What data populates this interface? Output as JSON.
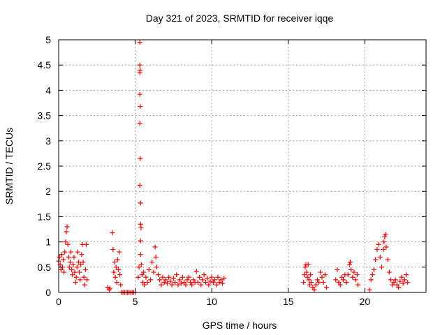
{
  "chart_data": {
    "type": "scatter",
    "title": "Day 321 of 2023, SRMTID for receiver iqqe",
    "xlabel": "GPS time / hours",
    "ylabel": "SRMTID / TECUs",
    "xlim": [
      0,
      24
    ],
    "ylim": [
      0,
      5
    ],
    "xticks": [
      0,
      5,
      10,
      15,
      20
    ],
    "yticks": [
      0,
      0.5,
      1,
      1.5,
      2,
      2.5,
      3,
      3.5,
      4,
      4.5,
      5
    ],
    "xtick_labels": [
      "0",
      "5",
      "10",
      "15",
      "20"
    ],
    "ytick_labels": [
      "0",
      "0.5",
      "1",
      "1.5",
      "2",
      "2.5",
      "3",
      "3.5",
      "4",
      "4.5",
      "5"
    ],
    "grid": true,
    "marker": "plus",
    "marker_color": "#ff0000",
    "series": [
      {
        "name": "SRMTID",
        "points": [
          [
            0.0,
            0.62
          ],
          [
            0.05,
            0.7
          ],
          [
            0.1,
            0.55
          ],
          [
            0.15,
            0.45
          ],
          [
            0.2,
            0.75
          ],
          [
            0.25,
            0.5
          ],
          [
            0.3,
            0.65
          ],
          [
            0.35,
            0.4
          ],
          [
            0.4,
            0.8
          ],
          [
            0.45,
            1.0
          ],
          [
            0.5,
            1.2
          ],
          [
            0.55,
            1.3
          ],
          [
            0.6,
            0.95
          ],
          [
            0.65,
            0.7
          ],
          [
            0.7,
            0.5
          ],
          [
            0.75,
            0.6
          ],
          [
            0.8,
            0.8
          ],
          [
            0.85,
            0.45
          ],
          [
            0.9,
            0.35
          ],
          [
            0.95,
            0.55
          ],
          [
            1.0,
            0.7
          ],
          [
            1.05,
            0.4
          ],
          [
            1.1,
            0.2
          ],
          [
            1.15,
            0.3
          ],
          [
            1.2,
            0.5
          ],
          [
            1.25,
            0.8
          ],
          [
            1.3,
            0.6
          ],
          [
            1.35,
            0.4
          ],
          [
            1.4,
            0.25
          ],
          [
            1.45,
            0.55
          ],
          [
            1.5,
            0.75
          ],
          [
            1.55,
            0.95
          ],
          [
            1.6,
            0.6
          ],
          [
            1.65,
            0.3
          ],
          [
            1.7,
            0.15
          ],
          [
            1.75,
            0.45
          ],
          [
            1.8,
            0.95
          ],
          [
            1.85,
            0.25
          ],
          [
            3.2,
            0.1
          ],
          [
            3.3,
            0.05
          ],
          [
            3.35,
            0.08
          ],
          [
            3.5,
            1.18
          ],
          [
            3.55,
            0.85
          ],
          [
            3.6,
            0.4
          ],
          [
            3.65,
            0.6
          ],
          [
            3.7,
            0.3
          ],
          [
            3.75,
            0.5
          ],
          [
            3.8,
            0.2
          ],
          [
            3.85,
            0.65
          ],
          [
            3.9,
            0.45
          ],
          [
            3.95,
            0.8
          ],
          [
            4.0,
            0.35
          ],
          [
            4.05,
            0.15
          ],
          [
            4.1,
            0.0
          ],
          [
            4.2,
            0.0
          ],
          [
            4.3,
            0.0
          ],
          [
            4.4,
            0.0
          ],
          [
            4.5,
            0.0
          ],
          [
            4.6,
            0.0
          ],
          [
            4.7,
            0.0
          ],
          [
            4.8,
            0.0
          ],
          [
            4.9,
            0.0
          ],
          [
            5.0,
            0.0
          ],
          [
            5.2,
            0.3
          ],
          [
            5.25,
            0.5
          ],
          [
            5.3,
            4.95
          ],
          [
            5.3,
            4.5
          ],
          [
            5.3,
            4.35
          ],
          [
            5.32,
            4.4
          ],
          [
            5.3,
            3.92
          ],
          [
            5.33,
            3.68
          ],
          [
            5.3,
            3.35
          ],
          [
            5.33,
            2.65
          ],
          [
            5.3,
            2.12
          ],
          [
            5.35,
            1.77
          ],
          [
            5.35,
            1.35
          ],
          [
            5.38,
            1.28
          ],
          [
            5.35,
            1.02
          ],
          [
            5.35,
            0.75
          ],
          [
            5.4,
            0.55
          ],
          [
            5.45,
            0.35
          ],
          [
            5.5,
            0.2
          ],
          [
            5.55,
            0.4
          ],
          [
            5.6,
            0.15
          ],
          [
            5.7,
            0.3
          ],
          [
            5.8,
            0.2
          ],
          [
            5.9,
            0.45
          ],
          [
            6.0,
            0.25
          ],
          [
            6.1,
            0.6
          ],
          [
            6.2,
            0.4
          ],
          [
            6.3,
            0.9
          ],
          [
            6.35,
            0.7
          ],
          [
            6.4,
            0.5
          ],
          [
            6.5,
            0.35
          ],
          [
            6.6,
            0.25
          ],
          [
            6.7,
            0.15
          ],
          [
            6.8,
            0.3
          ],
          [
            6.9,
            0.2
          ],
          [
            7.0,
            0.25
          ],
          [
            7.1,
            0.18
          ],
          [
            7.2,
            0.3
          ],
          [
            7.3,
            0.22
          ],
          [
            7.4,
            0.15
          ],
          [
            7.5,
            0.28
          ],
          [
            7.6,
            0.2
          ],
          [
            7.7,
            0.35
          ],
          [
            7.8,
            0.15
          ],
          [
            7.9,
            0.25
          ],
          [
            8.0,
            0.18
          ],
          [
            8.1,
            0.3
          ],
          [
            8.2,
            0.2
          ],
          [
            8.3,
            0.15
          ],
          [
            8.4,
            0.25
          ],
          [
            8.5,
            0.3
          ],
          [
            8.6,
            0.2
          ],
          [
            8.7,
            0.15
          ],
          [
            8.8,
            0.25
          ],
          [
            8.9,
            0.2
          ],
          [
            9.0,
            0.42
          ],
          [
            9.1,
            0.2
          ],
          [
            9.2,
            0.3
          ],
          [
            9.3,
            0.15
          ],
          [
            9.4,
            0.25
          ],
          [
            9.5,
            0.35
          ],
          [
            9.6,
            0.2
          ],
          [
            9.7,
            0.28
          ],
          [
            9.8,
            0.15
          ],
          [
            9.9,
            0.22
          ],
          [
            10.0,
            0.3
          ],
          [
            10.1,
            0.2
          ],
          [
            10.2,
            0.25
          ],
          [
            10.3,
            0.15
          ],
          [
            10.4,
            0.3
          ],
          [
            10.5,
            0.2
          ],
          [
            10.6,
            0.25
          ],
          [
            10.7,
            0.18
          ],
          [
            10.8,
            0.28
          ],
          [
            16.0,
            0.2
          ],
          [
            16.05,
            0.35
          ],
          [
            16.1,
            0.5
          ],
          [
            16.15,
            0.55
          ],
          [
            16.2,
            0.4
          ],
          [
            16.25,
            0.3
          ],
          [
            16.3,
            0.55
          ],
          [
            16.35,
            0.25
          ],
          [
            16.4,
            0.15
          ],
          [
            16.45,
            0.35
          ],
          [
            16.5,
            0.2
          ],
          [
            16.6,
            0.1
          ],
          [
            16.7,
            0.05
          ],
          [
            16.8,
            0.15
          ],
          [
            16.9,
            0.25
          ],
          [
            17.0,
            0.2
          ],
          [
            17.1,
            0.4
          ],
          [
            17.2,
            0.3
          ],
          [
            17.3,
            0.2
          ],
          [
            17.4,
            0.35
          ],
          [
            17.5,
            0.1
          ],
          [
            18.1,
            0.25
          ],
          [
            18.2,
            0.45
          ],
          [
            18.3,
            0.2
          ],
          [
            18.4,
            0.15
          ],
          [
            18.5,
            0.3
          ],
          [
            18.6,
            0.25
          ],
          [
            18.7,
            0.35
          ],
          [
            18.8,
            0.2
          ],
          [
            18.9,
            0.35
          ],
          [
            19.0,
            0.55
          ],
          [
            19.05,
            0.6
          ],
          [
            19.1,
            0.45
          ],
          [
            19.2,
            0.3
          ],
          [
            19.3,
            0.4
          ],
          [
            19.4,
            0.25
          ],
          [
            19.5,
            0.35
          ],
          [
            19.55,
            0.15
          ],
          [
            20.3,
            0.05
          ],
          [
            20.4,
            0.25
          ],
          [
            20.5,
            0.35
          ],
          [
            20.6,
            0.45
          ],
          [
            20.7,
            0.65
          ],
          [
            20.8,
            0.85
          ],
          [
            20.9,
            0.95
          ],
          [
            21.0,
            0.7
          ],
          [
            21.1,
            0.5
          ],
          [
            21.2,
            0.85
          ],
          [
            21.25,
            1.0
          ],
          [
            21.3,
            1.1
          ],
          [
            21.35,
            1.15
          ],
          [
            21.4,
            0.9
          ],
          [
            21.5,
            0.65
          ],
          [
            21.6,
            0.4
          ],
          [
            21.7,
            0.25
          ],
          [
            21.8,
            0.15
          ],
          [
            21.9,
            0.2
          ],
          [
            22.0,
            0.25
          ],
          [
            22.1,
            0.15
          ],
          [
            22.2,
            0.1
          ],
          [
            22.3,
            0.22
          ],
          [
            22.4,
            0.3
          ],
          [
            22.5,
            0.18
          ],
          [
            22.6,
            0.25
          ],
          [
            22.7,
            0.35
          ],
          [
            22.8,
            0.2
          ]
        ]
      }
    ]
  }
}
